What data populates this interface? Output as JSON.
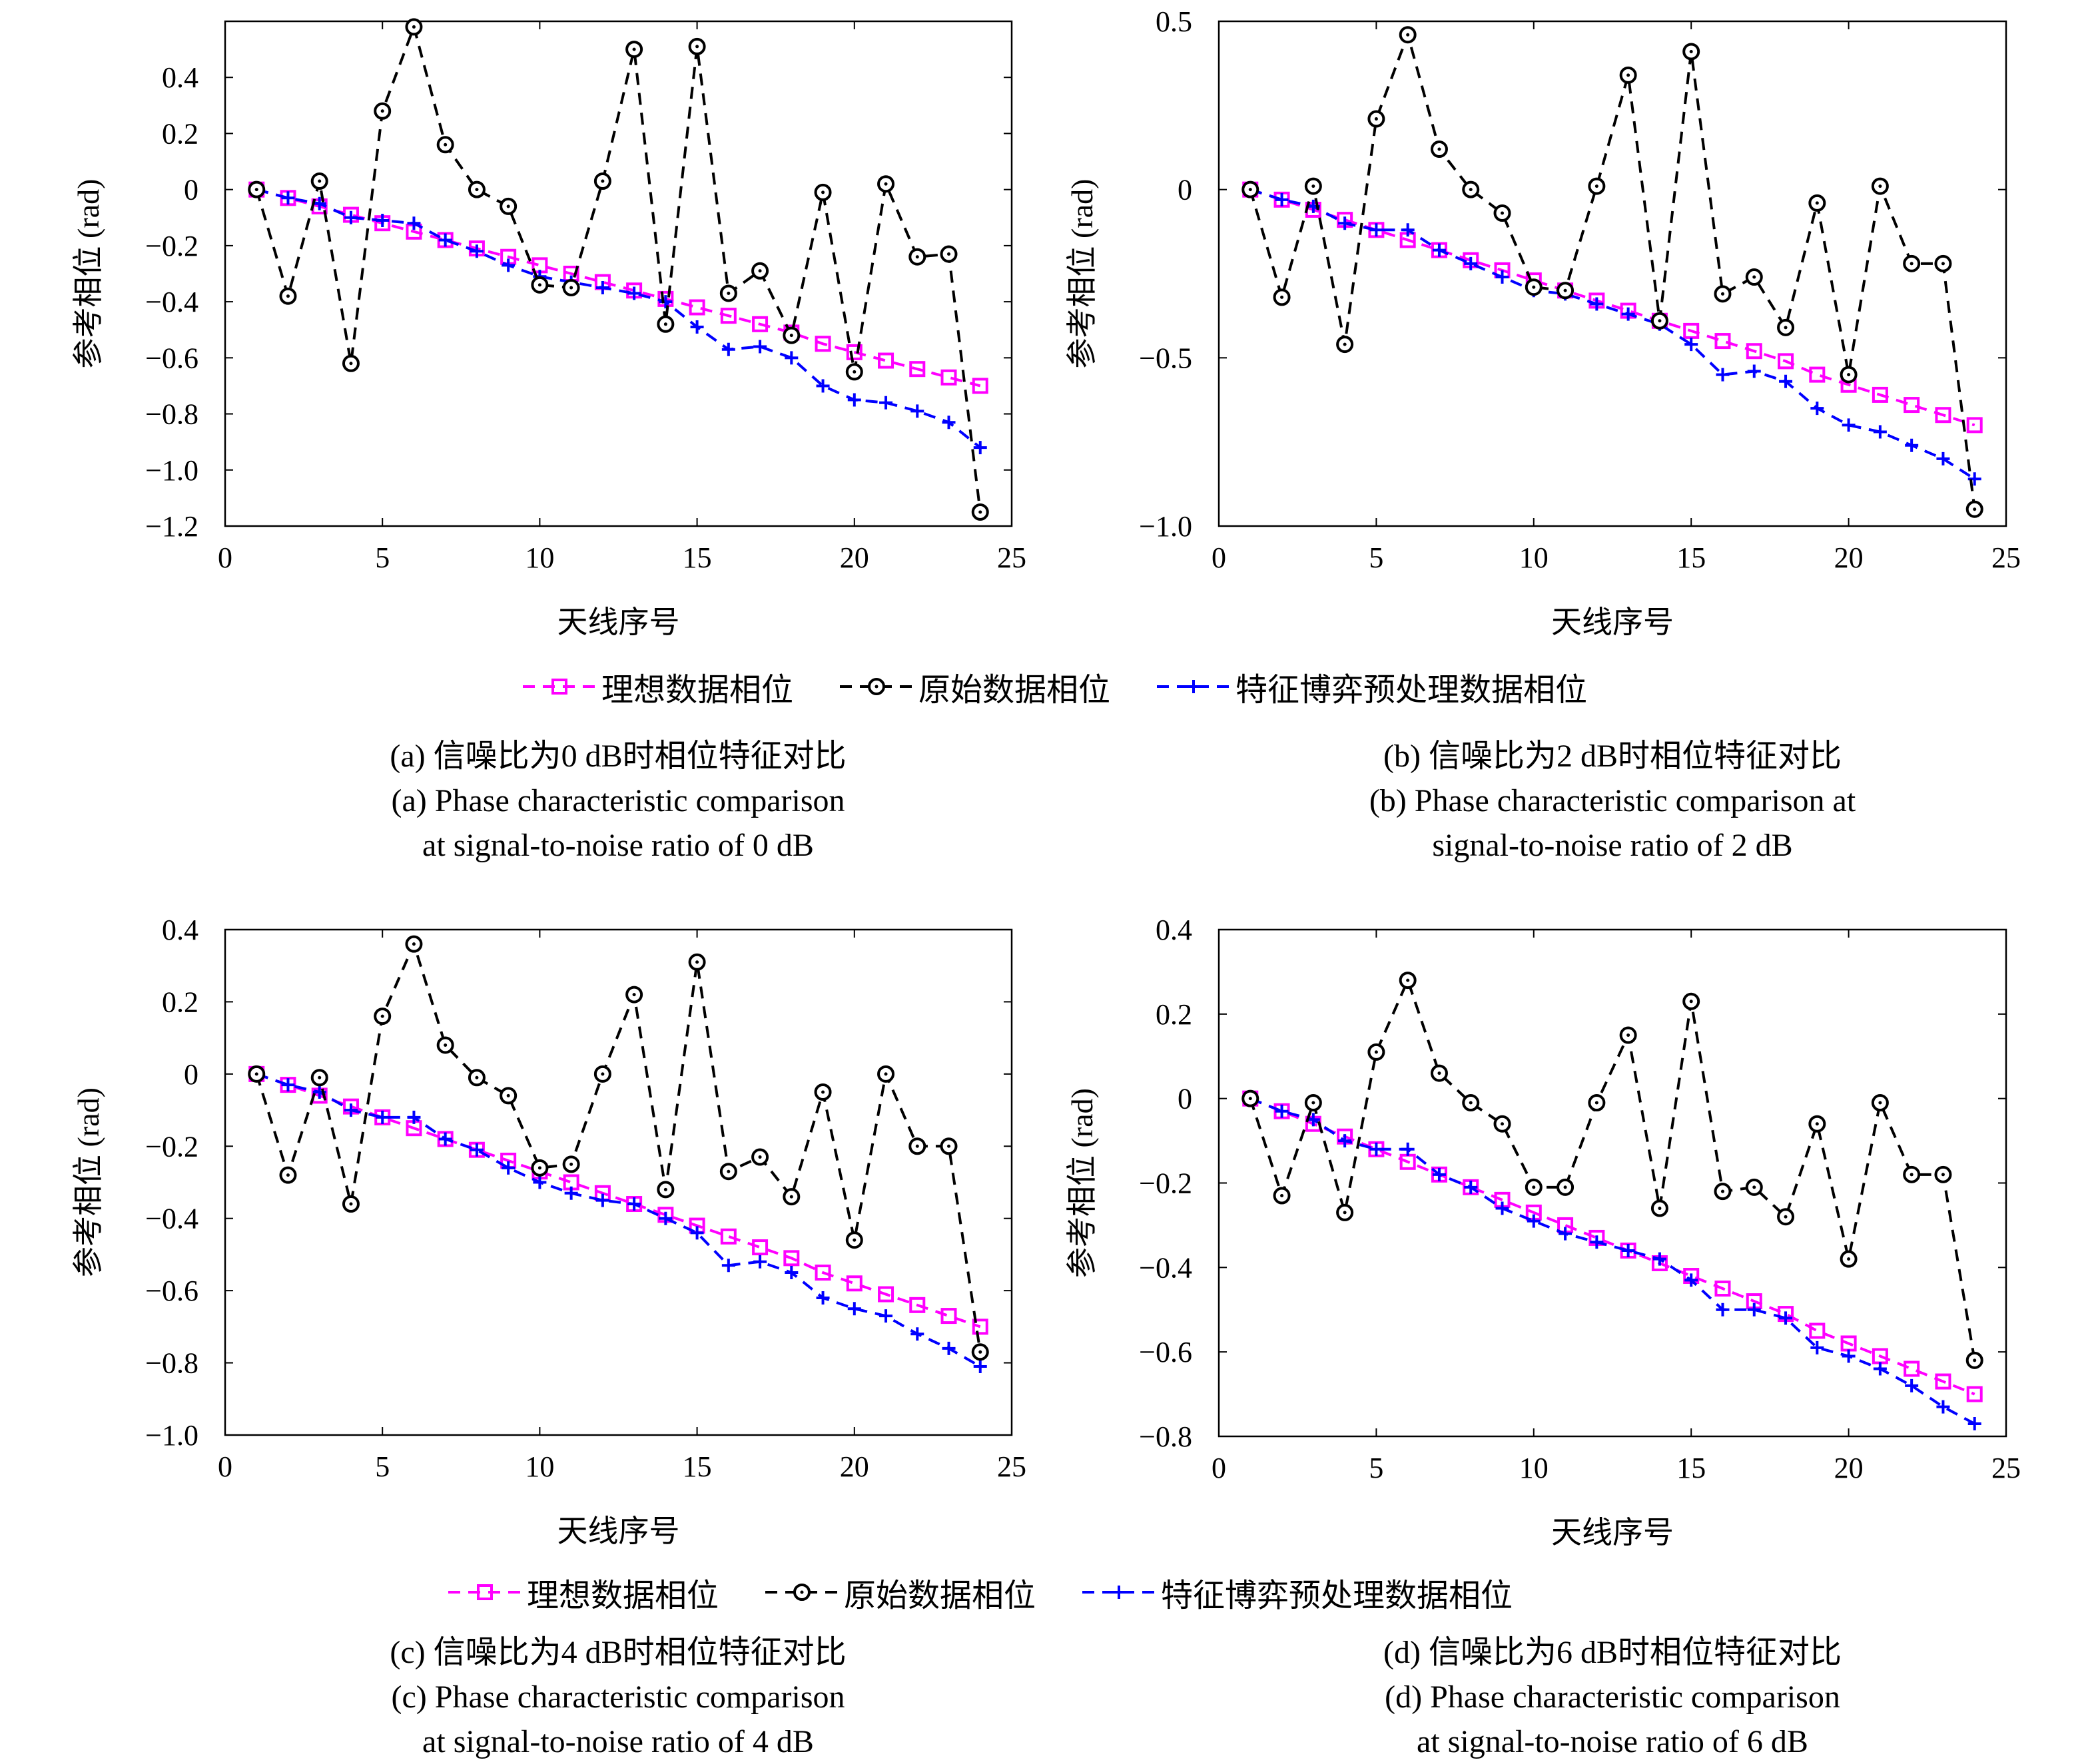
{
  "legend": [
    {
      "label": "理想数据相位",
      "color": "#ff00ff",
      "marker": "square"
    },
    {
      "label": "原始数据相位",
      "color": "#000000",
      "marker": "circle"
    },
    {
      "label": "特征博弈预处理数据相位",
      "color": "#0000ff",
      "marker": "plus"
    }
  ],
  "captions": [
    {
      "cn": "(a) 信噪比为0 dB时相位特征对比",
      "en1": "(a) Phase characteristic comparison",
      "en2": "at signal-to-noise ratio of 0 dB"
    },
    {
      "cn": "(b) 信噪比为2 dB时相位特征对比",
      "en1": "(b) Phase characteristic comparison at",
      "en2": "signal-to-noise ratio of 2 dB"
    },
    {
      "cn": "(c) 信噪比为4 dB时相位特征对比",
      "en1": "(c) Phase characteristic comparison",
      "en2": "at signal-to-noise ratio of 4 dB"
    },
    {
      "cn": "(d) 信噪比为6 dB时相位特征对比",
      "en1": "(d) Phase characteristic comparison",
      "en2": "at signal-to-noise ratio of 6 dB"
    }
  ],
  "chart_data": [
    {
      "type": "line",
      "xlabel": "天线序号",
      "ylabel": "参考相位 (rad)",
      "xlim": [
        0,
        25
      ],
      "ylim": [
        -1.2,
        0.6
      ],
      "xticks": [
        0,
        5,
        10,
        15,
        20,
        25
      ],
      "yticks": [
        -1.2,
        -1.0,
        -0.8,
        -0.6,
        -0.4,
        -0.2,
        0,
        0.2,
        0.4
      ],
      "ytick_labels": [
        "−1.2",
        "−1.0",
        "−0.8",
        "−0.6",
        "−0.4",
        "−0.2",
        "0",
        "0.2",
        "0.4"
      ],
      "x": [
        1,
        2,
        3,
        4,
        5,
        6,
        7,
        8,
        9,
        10,
        11,
        12,
        13,
        14,
        15,
        16,
        17,
        18,
        19,
        20,
        21,
        22,
        23,
        24
      ],
      "series": [
        {
          "name": "理想数据相位",
          "values": [
            0,
            -0.03,
            -0.06,
            -0.09,
            -0.12,
            -0.15,
            -0.18,
            -0.21,
            -0.24,
            -0.27,
            -0.3,
            -0.33,
            -0.36,
            -0.39,
            -0.42,
            -0.45,
            -0.48,
            -0.51,
            -0.55,
            -0.58,
            -0.61,
            -0.64,
            -0.67,
            -0.7
          ]
        },
        {
          "name": "原始数据相位",
          "values": [
            0,
            -0.38,
            0.03,
            -0.62,
            0.28,
            0.58,
            0.16,
            0.0,
            -0.06,
            -0.34,
            -0.35,
            0.03,
            0.5,
            -0.48,
            0.51,
            -0.37,
            -0.29,
            -0.52,
            -0.01,
            -0.65,
            0.02,
            -0.24,
            -0.23,
            -1.15
          ]
        },
        {
          "name": "特征博弈预处理数据相位",
          "values": [
            0,
            -0.03,
            -0.05,
            -0.1,
            -0.11,
            -0.12,
            -0.18,
            -0.22,
            -0.27,
            -0.31,
            -0.33,
            -0.35,
            -0.37,
            -0.4,
            -0.49,
            -0.57,
            -0.56,
            -0.6,
            -0.7,
            -0.75,
            -0.76,
            -0.79,
            -0.83,
            -0.92
          ]
        }
      ]
    },
    {
      "type": "line",
      "xlabel": "天线序号",
      "ylabel": "参考相位 (rad)",
      "xlim": [
        0,
        25
      ],
      "ylim": [
        -1.0,
        0.5
      ],
      "xticks": [
        0,
        5,
        10,
        15,
        20,
        25
      ],
      "yticks": [
        -1.0,
        -0.5,
        0,
        0.5
      ],
      "ytick_labels": [
        "−1.0",
        "−0.5",
        "0",
        "0.5"
      ],
      "x": [
        1,
        2,
        3,
        4,
        5,
        6,
        7,
        8,
        9,
        10,
        11,
        12,
        13,
        14,
        15,
        16,
        17,
        18,
        19,
        20,
        21,
        22,
        23,
        24
      ],
      "series": [
        {
          "name": "理想数据相位",
          "values": [
            0,
            -0.03,
            -0.06,
            -0.09,
            -0.12,
            -0.15,
            -0.18,
            -0.21,
            -0.24,
            -0.27,
            -0.3,
            -0.33,
            -0.36,
            -0.39,
            -0.42,
            -0.45,
            -0.48,
            -0.51,
            -0.55,
            -0.58,
            -0.61,
            -0.64,
            -0.67,
            -0.7
          ]
        },
        {
          "name": "原始数据相位",
          "values": [
            0,
            -0.32,
            0.01,
            -0.46,
            0.21,
            0.46,
            0.12,
            0.0,
            -0.07,
            -0.29,
            -0.3,
            0.01,
            0.34,
            -0.39,
            0.41,
            -0.31,
            -0.26,
            -0.41,
            -0.04,
            -0.55,
            0.01,
            -0.22,
            -0.22,
            -0.95
          ]
        },
        {
          "name": "特征博弈预处理数据相位",
          "values": [
            0,
            -0.03,
            -0.05,
            -0.1,
            -0.12,
            -0.12,
            -0.18,
            -0.22,
            -0.26,
            -0.3,
            -0.31,
            -0.34,
            -0.37,
            -0.4,
            -0.46,
            -0.55,
            -0.54,
            -0.57,
            -0.65,
            -0.7,
            -0.72,
            -0.76,
            -0.8,
            -0.86
          ]
        }
      ]
    },
    {
      "type": "line",
      "xlabel": "天线序号",
      "ylabel": "参考相位 (rad)",
      "xlim": [
        0,
        25
      ],
      "ylim": [
        -1.0,
        0.4
      ],
      "xticks": [
        0,
        5,
        10,
        15,
        20,
        25
      ],
      "yticks": [
        -1.0,
        -0.8,
        -0.6,
        -0.4,
        -0.2,
        0,
        0.2,
        0.4
      ],
      "ytick_labels": [
        "−1.0",
        "−0.8",
        "−0.6",
        "−0.4",
        "−0.2",
        "0",
        "0.2",
        "0.4"
      ],
      "x": [
        1,
        2,
        3,
        4,
        5,
        6,
        7,
        8,
        9,
        10,
        11,
        12,
        13,
        14,
        15,
        16,
        17,
        18,
        19,
        20,
        21,
        22,
        23,
        24
      ],
      "series": [
        {
          "name": "理想数据相位",
          "values": [
            0,
            -0.03,
            -0.06,
            -0.09,
            -0.12,
            -0.15,
            -0.18,
            -0.21,
            -0.24,
            -0.27,
            -0.3,
            -0.33,
            -0.36,
            -0.39,
            -0.42,
            -0.45,
            -0.48,
            -0.51,
            -0.55,
            -0.58,
            -0.61,
            -0.64,
            -0.67,
            -0.7
          ]
        },
        {
          "name": "原始数据相位",
          "values": [
            0,
            -0.28,
            -0.01,
            -0.36,
            0.16,
            0.36,
            0.08,
            -0.01,
            -0.06,
            -0.26,
            -0.25,
            0.0,
            0.22,
            -0.32,
            0.31,
            -0.27,
            -0.23,
            -0.34,
            -0.05,
            -0.46,
            0.0,
            -0.2,
            -0.2,
            -0.77
          ]
        },
        {
          "name": "特征博弈预处理数据相位",
          "values": [
            0,
            -0.03,
            -0.05,
            -0.1,
            -0.12,
            -0.12,
            -0.18,
            -0.21,
            -0.26,
            -0.3,
            -0.33,
            -0.35,
            -0.36,
            -0.4,
            -0.44,
            -0.53,
            -0.52,
            -0.55,
            -0.62,
            -0.65,
            -0.67,
            -0.72,
            -0.76,
            -0.81
          ]
        }
      ]
    },
    {
      "type": "line",
      "xlabel": "天线序号",
      "ylabel": "参考相位 (rad)",
      "xlim": [
        0,
        25
      ],
      "ylim": [
        -0.8,
        0.4
      ],
      "xticks": [
        0,
        5,
        10,
        15,
        20,
        25
      ],
      "yticks": [
        -0.8,
        -0.6,
        -0.4,
        -0.2,
        0,
        0.2,
        0.4
      ],
      "ytick_labels": [
        "−0.8",
        "−0.6",
        "−0.4",
        "−0.2",
        "0",
        "0.2",
        "0.4"
      ],
      "x": [
        1,
        2,
        3,
        4,
        5,
        6,
        7,
        8,
        9,
        10,
        11,
        12,
        13,
        14,
        15,
        16,
        17,
        18,
        19,
        20,
        21,
        22,
        23,
        24
      ],
      "series": [
        {
          "name": "理想数据相位",
          "values": [
            0,
            -0.03,
            -0.06,
            -0.09,
            -0.12,
            -0.15,
            -0.18,
            -0.21,
            -0.24,
            -0.27,
            -0.3,
            -0.33,
            -0.36,
            -0.39,
            -0.42,
            -0.45,
            -0.48,
            -0.51,
            -0.55,
            -0.58,
            -0.61,
            -0.64,
            -0.67,
            -0.7
          ]
        },
        {
          "name": "原始数据相位",
          "values": [
            0,
            -0.23,
            -0.01,
            -0.27,
            0.11,
            0.28,
            0.06,
            -0.01,
            -0.06,
            -0.21,
            -0.21,
            -0.01,
            0.15,
            -0.26,
            0.23,
            -0.22,
            -0.21,
            -0.28,
            -0.06,
            -0.38,
            -0.01,
            -0.18,
            -0.18,
            -0.62
          ]
        },
        {
          "name": "特征博弈预处理数据相位",
          "values": [
            0,
            -0.03,
            -0.05,
            -0.1,
            -0.12,
            -0.12,
            -0.18,
            -0.21,
            -0.26,
            -0.29,
            -0.32,
            -0.34,
            -0.36,
            -0.38,
            -0.43,
            -0.5,
            -0.5,
            -0.52,
            -0.59,
            -0.61,
            -0.64,
            -0.68,
            -0.73,
            -0.77
          ]
        }
      ]
    }
  ]
}
